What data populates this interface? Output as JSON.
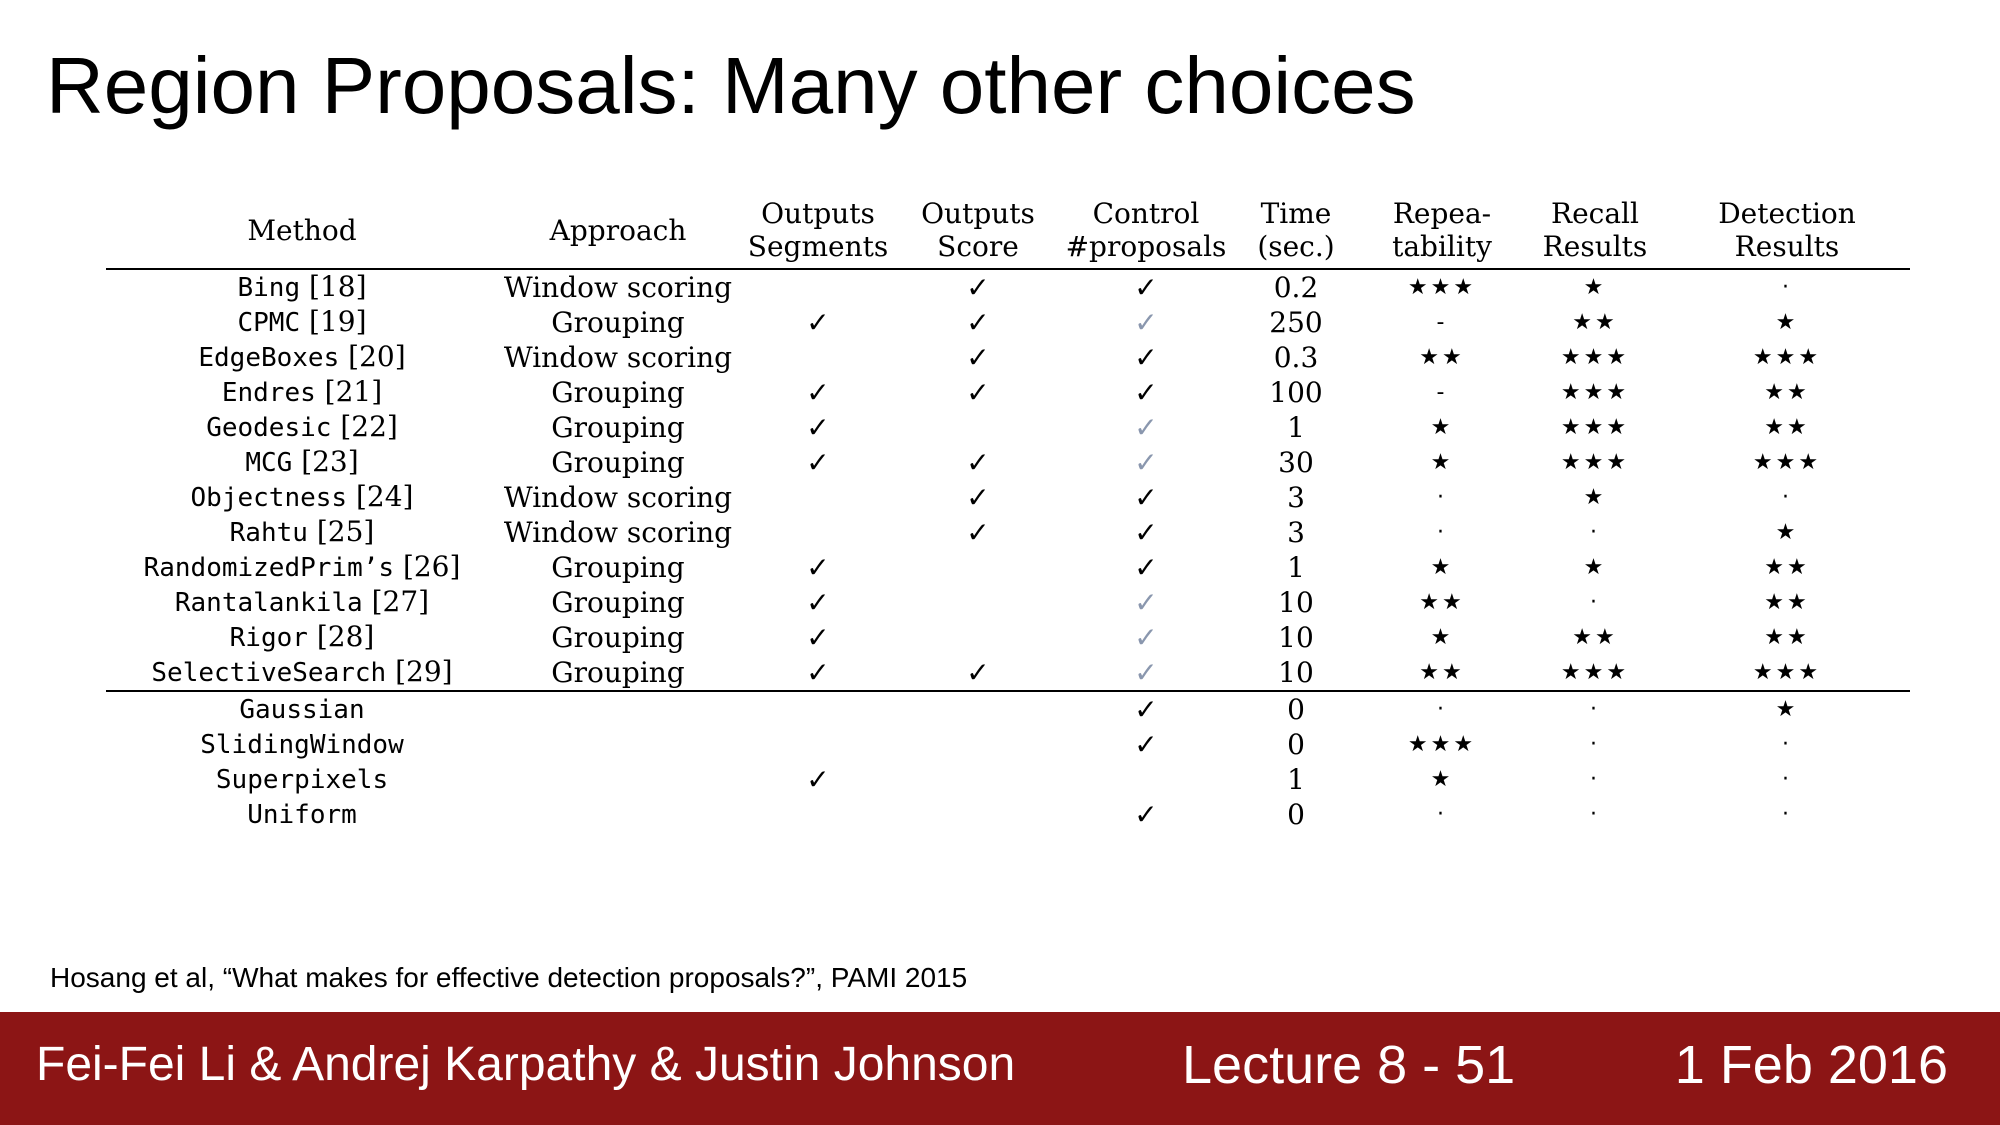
{
  "title": "Region Proposals: Many other choices",
  "table": {
    "headers": [
      {
        "line1": "Method",
        "line2": ""
      },
      {
        "line1": "Approach",
        "line2": ""
      },
      {
        "line1": "Outputs",
        "line2": "Segments"
      },
      {
        "line1": "Outputs",
        "line2": "Score"
      },
      {
        "line1": "Control",
        "line2": "#proposals"
      },
      {
        "line1": "Time",
        "line2": "(sec.)"
      },
      {
        "line1": "Repea-",
        "line2": "tability"
      },
      {
        "line1": "Recall",
        "line2": "Results"
      },
      {
        "line1": "Detection",
        "line2": "Results"
      }
    ],
    "rows": [
      {
        "method": "Bing",
        "ref": "[18]",
        "approach": "Window scoring",
        "segments": "",
        "score": "✓",
        "control": "✓",
        "control_light": false,
        "time": "0.2",
        "repeatability": "★★★",
        "recall": "★",
        "detection": "·"
      },
      {
        "method": "CPMC",
        "ref": "[19]",
        "approach": "Grouping",
        "segments": "✓",
        "score": "✓",
        "control": "✓",
        "control_light": true,
        "time": "250",
        "repeatability": "-",
        "recall": "★★",
        "detection": "★"
      },
      {
        "method": "EdgeBoxes",
        "ref": "[20]",
        "approach": "Window scoring",
        "segments": "",
        "score": "✓",
        "control": "✓",
        "control_light": false,
        "time": "0.3",
        "repeatability": "★★",
        "recall": "★★★",
        "detection": "★★★"
      },
      {
        "method": "Endres",
        "ref": "[21]",
        "approach": "Grouping",
        "segments": "✓",
        "score": "✓",
        "control": "✓",
        "control_light": false,
        "time": "100",
        "repeatability": "-",
        "recall": "★★★",
        "detection": "★★"
      },
      {
        "method": "Geodesic",
        "ref": "[22]",
        "approach": "Grouping",
        "segments": "✓",
        "score": "",
        "control": "✓",
        "control_light": true,
        "time": "1",
        "repeatability": "★",
        "recall": "★★★",
        "detection": "★★"
      },
      {
        "method": "MCG",
        "ref": "[23]",
        "approach": "Grouping",
        "segments": "✓",
        "score": "✓",
        "control": "✓",
        "control_light": true,
        "time": "30",
        "repeatability": "★",
        "recall": "★★★",
        "detection": "★★★"
      },
      {
        "method": "Objectness",
        "ref": "[24]",
        "approach": "Window scoring",
        "segments": "",
        "score": "✓",
        "control": "✓",
        "control_light": false,
        "time": "3",
        "repeatability": "·",
        "recall": "★",
        "detection": "·"
      },
      {
        "method": "Rahtu",
        "ref": "[25]",
        "approach": "Window scoring",
        "segments": "",
        "score": "✓",
        "control": "✓",
        "control_light": false,
        "time": "3",
        "repeatability": "·",
        "recall": "·",
        "detection": "★"
      },
      {
        "method": "RandomizedPrim’s",
        "ref": "[26]",
        "approach": "Grouping",
        "segments": "✓",
        "score": "",
        "control": "✓",
        "control_light": false,
        "time": "1",
        "repeatability": "★",
        "recall": "★",
        "detection": "★★"
      },
      {
        "method": "Rantalankila",
        "ref": "[27]",
        "approach": "Grouping",
        "segments": "✓",
        "score": "",
        "control": "✓",
        "control_light": true,
        "time": "10",
        "repeatability": "★★",
        "recall": "·",
        "detection": "★★"
      },
      {
        "method": "Rigor",
        "ref": "[28]",
        "approach": "Grouping",
        "segments": "✓",
        "score": "",
        "control": "✓",
        "control_light": true,
        "time": "10",
        "repeatability": "★",
        "recall": "★★",
        "detection": "★★"
      },
      {
        "method": "SelectiveSearch",
        "ref": "[29]",
        "approach": "Grouping",
        "segments": "✓",
        "score": "✓",
        "control": "✓",
        "control_light": true,
        "time": "10",
        "repeatability": "★★",
        "recall": "★★★",
        "detection": "★★★"
      },
      {
        "method": "Gaussian",
        "ref": "",
        "approach": "",
        "segments": "",
        "score": "",
        "control": "✓",
        "control_light": false,
        "time": "0",
        "repeatability": "·",
        "recall": "·",
        "detection": "★"
      },
      {
        "method": "SlidingWindow",
        "ref": "",
        "approach": "",
        "segments": "",
        "score": "",
        "control": "✓",
        "control_light": false,
        "time": "0",
        "repeatability": "★★★",
        "recall": "·",
        "detection": "·"
      },
      {
        "method": "Superpixels",
        "ref": "",
        "approach": "",
        "segments": "✓",
        "score": "",
        "control": "",
        "control_light": false,
        "time": "1",
        "repeatability": "★",
        "recall": "·",
        "detection": "·"
      },
      {
        "method": "Uniform",
        "ref": "",
        "approach": "",
        "segments": "",
        "score": "",
        "control": "✓",
        "control_light": false,
        "time": "0",
        "repeatability": "·",
        "recall": "·",
        "detection": "·"
      }
    ]
  },
  "citation": "Hosang et al, “What makes for effective detection proposals?”, PAMI 2015",
  "footer": {
    "authors": "Fei-Fei Li & Andrej Karpathy & Justin Johnson",
    "lecture": "Lecture 8 - 51",
    "date": "1 Feb 2016"
  },
  "colors": {
    "footer_bg": "#8c1515",
    "light_check": "#8a97ae"
  }
}
